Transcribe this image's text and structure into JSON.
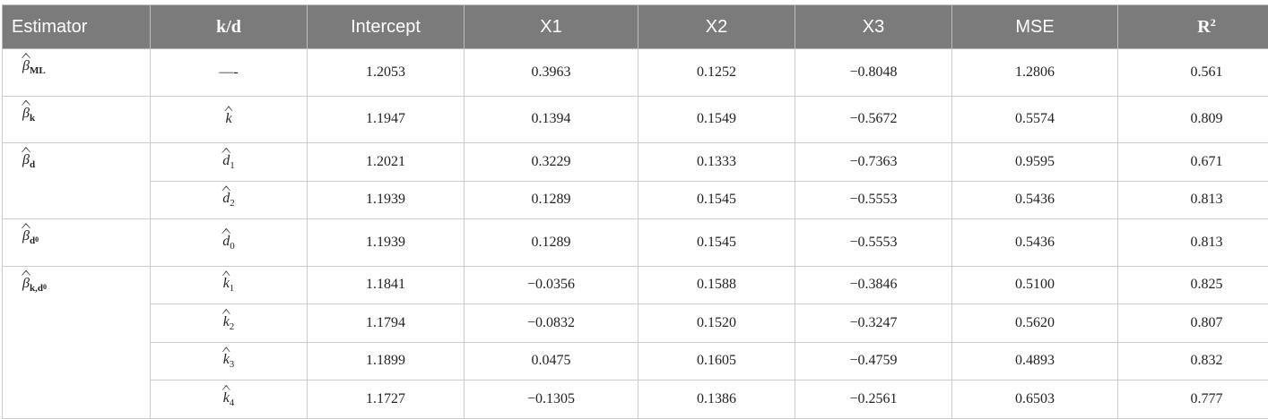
{
  "table": {
    "header": [
      "Estimator",
      "k/d",
      "Intercept",
      "X1",
      "X2",
      "X3",
      "MSE",
      {
        "base": "R",
        "sup": "2"
      }
    ],
    "groups": [
      {
        "estimator": {
          "base": "β",
          "sub": "ML"
        },
        "rows": [
          {
            "kd": "—-",
            "values": [
              "1.2053",
              "0.3963",
              "0.1252",
              "−0.8048",
              "1.2806",
              "0.561"
            ]
          }
        ]
      },
      {
        "estimator": {
          "base": "β",
          "sub": "k"
        },
        "rows": [
          {
            "kd": {
              "base": "k"
            },
            "values": [
              "1.1947",
              "0.1394",
              "0.1549",
              "−0.5672",
              "0.5574",
              "0.809"
            ]
          }
        ]
      },
      {
        "estimator": {
          "base": "β",
          "sub": "d"
        },
        "rows": [
          {
            "kd": {
              "base": "d",
              "sub": "1"
            },
            "values": [
              "1.2021",
              "0.3229",
              "0.1333",
              "−0.7363",
              "0.9595",
              "0.671"
            ]
          },
          {
            "kd": {
              "base": "d",
              "sub": "2"
            },
            "values": [
              "1.1939",
              "0.1289",
              "0.1545",
              "−0.5553",
              "0.5436",
              "0.813"
            ]
          }
        ]
      },
      {
        "estimator": {
          "base": "β",
          "sub": "d",
          "sub2": "0"
        },
        "rows": [
          {
            "kd": {
              "base": "d",
              "sub": "0"
            },
            "values": [
              "1.1939",
              "0.1289",
              "0.1545",
              "−0.5553",
              "0.5436",
              "0.813"
            ]
          }
        ]
      },
      {
        "estimator": {
          "base": "β",
          "sub": "k,d",
          "sub2": "0"
        },
        "rows": [
          {
            "kd": {
              "base": "k",
              "sub": "1"
            },
            "values": [
              "1.1841",
              "−0.0356",
              "0.1588",
              "−0.3846",
              "0.5100",
              "0.825"
            ]
          },
          {
            "kd": {
              "base": "k",
              "sub": "2"
            },
            "values": [
              "1.1794",
              "−0.0832",
              "0.1520",
              "−0.3247",
              "0.5620",
              "0.807"
            ]
          },
          {
            "kd": {
              "base": "k",
              "sub": "3"
            },
            "values": [
              "1.1899",
              "0.0475",
              "0.1605",
              "−0.4759",
              "0.4893",
              "0.832"
            ]
          },
          {
            "kd": {
              "base": "k",
              "sub": "4"
            },
            "values": [
              "1.1727",
              "−0.1305",
              "0.1386",
              "−0.2561",
              "0.6503",
              "0.777"
            ]
          }
        ]
      }
    ]
  }
}
